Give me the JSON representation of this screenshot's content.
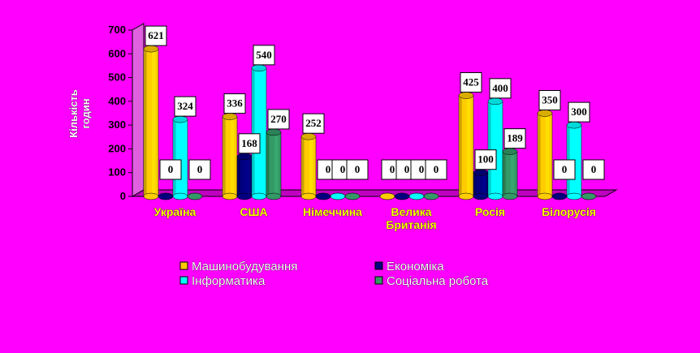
{
  "chart_data": {
    "type": "bar",
    "ylabel_lines": [
      "Кількість",
      "годин"
    ],
    "ylim": [
      0,
      700
    ],
    "yticks": [
      0,
      100,
      200,
      300,
      400,
      500,
      600,
      700
    ],
    "categories": [
      [
        "Україна"
      ],
      [
        "США"
      ],
      [
        "Німеччина"
      ],
      [
        "Велика",
        "Британія"
      ],
      [
        "Росія"
      ],
      [
        "Білорусія"
      ]
    ],
    "series": [
      {
        "name": "Машинобудування",
        "color": "#FFCC00",
        "values": [
          621,
          336,
          252,
          0,
          425,
          350
        ]
      },
      {
        "name": "Економіка",
        "color": "#000080",
        "values": [
          0,
          168,
          0,
          0,
          100,
          0
        ]
      },
      {
        "name": "Інформатика",
        "color": "#00FFFF",
        "values": [
          324,
          540,
          0,
          0,
          400,
          300
        ]
      },
      {
        "name": "Соціальна робота",
        "color": "#339966",
        "values": [
          0,
          270,
          0,
          0,
          189,
          0
        ]
      }
    ],
    "grid": false,
    "legend_position": "bottom"
  }
}
